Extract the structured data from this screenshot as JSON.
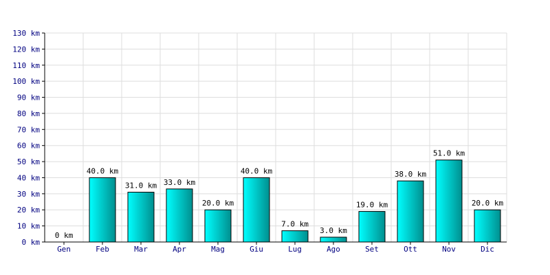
{
  "chart_data": {
    "type": "bar",
    "title": "",
    "xlabel": "",
    "ylabel": "",
    "unit": "km",
    "categories": [
      "Gen",
      "Feb",
      "Mar",
      "Apr",
      "Mag",
      "Giu",
      "Lug",
      "Ago",
      "Set",
      "Ott",
      "Nov",
      "Dic"
    ],
    "values": [
      0,
      40,
      31,
      33,
      20,
      40,
      7,
      3,
      19,
      38,
      51,
      20
    ],
    "data_labels": [
      "0 km",
      "40.0 km",
      "31.0 km",
      "33.0 km",
      "20.0 km",
      "40.0 km",
      "7.0 km",
      "3.0 km",
      "19.0 km",
      "38.0 km",
      "51.0 km",
      "20.0 km"
    ],
    "y_ticks": [
      "0 km",
      "10 km",
      "20 km",
      "30 km",
      "40 km",
      "50 km",
      "60 km",
      "70 km",
      "80 km",
      "90 km",
      "100 km",
      "110 km",
      "120 km",
      "130 km"
    ],
    "ylim": [
      0,
      130
    ],
    "grid": true,
    "legend": "none",
    "colors": {
      "bar_light": "#00ffff",
      "bar_dark": "#009999",
      "bar_edge": "#000000",
      "grid": "#dddddd",
      "tick_text": "#000080"
    }
  }
}
